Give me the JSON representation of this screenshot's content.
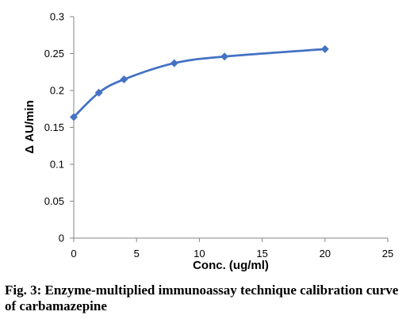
{
  "chart_data": {
    "type": "line",
    "title": "",
    "xlabel": "Conc. (ug/ml)",
    "ylabel": "Δ AU/min",
    "xlim": [
      0,
      25
    ],
    "ylim": [
      0,
      0.3
    ],
    "x_ticks": [
      0,
      5,
      10,
      15,
      20,
      25
    ],
    "x_tick_labels": [
      "0",
      "5",
      "10",
      "15",
      "20",
      "25"
    ],
    "y_ticks": [
      0,
      0.05,
      0.1,
      0.15,
      0.2,
      0.25,
      0.3
    ],
    "y_tick_labels": [
      "0",
      "0.05",
      "0.1",
      "0.15",
      "0.2",
      "0.25",
      "0.3"
    ],
    "grid": false,
    "legend": "none",
    "series": [
      {
        "x": [
          0,
          2,
          4,
          8,
          12,
          20
        ],
        "y": [
          0.164,
          0.197,
          0.215,
          0.237,
          0.246,
          0.256
        ],
        "color": "#4472C4",
        "marker": "diamond",
        "smooth": true
      }
    ]
  },
  "caption": "Fig. 3: Enzyme-multiplied immunoassay technique calibration curve of carbamazepine"
}
